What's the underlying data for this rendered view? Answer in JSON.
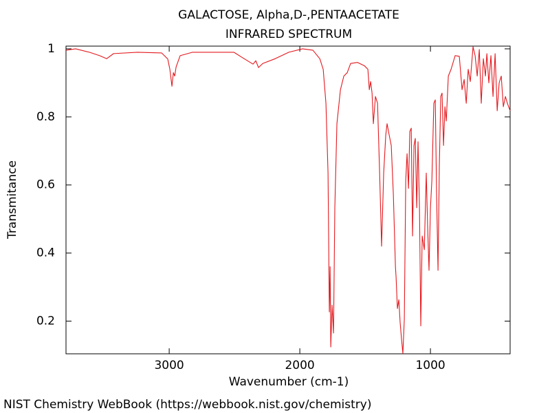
{
  "chart_data": {
    "type": "line",
    "title": "GALACTOSE, Alpha,D-,PENTAACETATE",
    "subtitle": "INFRARED SPECTRUM",
    "x_label": "Wavenumber (cm-1)",
    "y_label": "Transmitance",
    "footer": "NIST Chemistry WebBook (https://webbook.nist.gov/chemistry)",
    "color": "#e3171c",
    "xlim": [
      3790,
      390
    ],
    "ylim": [
      0.104,
      1.008
    ],
    "xticks": [
      3000,
      2000,
      1000
    ],
    "yticks": [
      0.2,
      0.4,
      0.6,
      0.8,
      1
    ],
    "grid": false,
    "x": [
      3789,
      3716,
      3611,
      3532,
      3479,
      3426,
      3242,
      3058,
      3011,
      2995,
      2979,
      2968,
      2958,
      2947,
      2916,
      2821,
      2505,
      2426,
      2358,
      2337,
      2316,
      2284,
      2189,
      2084,
      1979,
      1900,
      1847,
      1821,
      1800,
      1784,
      1774,
      1768,
      1763,
      1753,
      1742,
      1732,
      1716,
      1689,
      1663,
      1637,
      1611,
      1558,
      1505,
      1479,
      1468,
      1458,
      1447,
      1437,
      1421,
      1405,
      1389,
      1374,
      1358,
      1342,
      1332,
      1316,
      1300,
      1284,
      1268,
      1263,
      1253,
      1242,
      1232,
      1221,
      1211,
      1200,
      1189,
      1179,
      1168,
      1158,
      1147,
      1137,
      1126,
      1116,
      1105,
      1095,
      1084,
      1074,
      1063,
      1047,
      1032,
      1021,
      1011,
      1000,
      989,
      974,
      963,
      953,
      942,
      932,
      921,
      911,
      900,
      889,
      879,
      863,
      842,
      811,
      779,
      758,
      742,
      726,
      711,
      695,
      674,
      658,
      642,
      626,
      611,
      595,
      579,
      568,
      553,
      537,
      521,
      505,
      489,
      474,
      458,
      442,
      426,
      411,
      390
    ],
    "values": [
      0.996,
      1.0,
      0.99,
      0.98,
      0.971,
      0.986,
      0.99,
      0.988,
      0.97,
      0.94,
      0.89,
      0.93,
      0.92,
      0.947,
      0.98,
      0.99,
      0.99,
      0.971,
      0.955,
      0.965,
      0.945,
      0.957,
      0.971,
      0.99,
      1.0,
      0.996,
      0.971,
      0.94,
      0.84,
      0.635,
      0.227,
      0.36,
      0.124,
      0.247,
      0.165,
      0.533,
      0.78,
      0.88,
      0.92,
      0.93,
      0.957,
      0.96,
      0.95,
      0.94,
      0.88,
      0.904,
      0.87,
      0.78,
      0.86,
      0.84,
      0.635,
      0.42,
      0.635,
      0.747,
      0.78,
      0.747,
      0.716,
      0.573,
      0.36,
      0.329,
      0.237,
      0.263,
      0.196,
      0.145,
      0.105,
      0.206,
      0.614,
      0.692,
      0.59,
      0.757,
      0.767,
      0.45,
      0.716,
      0.737,
      0.533,
      0.727,
      0.533,
      0.186,
      0.45,
      0.41,
      0.635,
      0.471,
      0.349,
      0.533,
      0.614,
      0.84,
      0.85,
      0.573,
      0.349,
      0.655,
      0.86,
      0.87,
      0.716,
      0.83,
      0.788,
      0.92,
      0.94,
      0.98,
      0.978,
      0.88,
      0.91,
      0.84,
      0.94,
      0.904,
      1.006,
      0.98,
      0.92,
      0.998,
      0.84,
      0.971,
      0.92,
      0.986,
      0.9,
      0.98,
      0.86,
      0.986,
      0.818,
      0.9,
      0.92,
      0.83,
      0.86,
      0.84,
      0.818
    ]
  }
}
